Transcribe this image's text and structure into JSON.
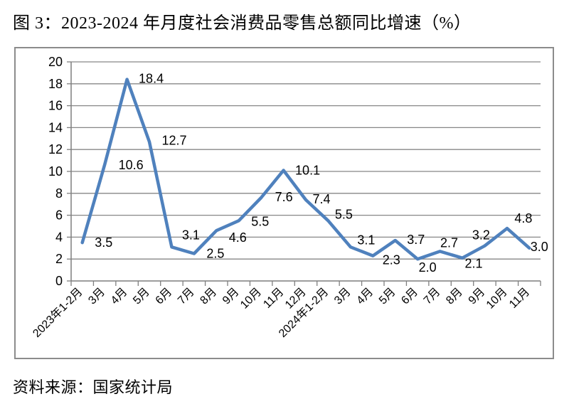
{
  "page": {
    "title": "图 3：2023-2024 年月度社会消费品零售总额同比增速（%）",
    "source": "资料来源：国家统计局"
  },
  "chart_data": {
    "type": "line",
    "title": "2023-2024 年月度社会消费品零售总额同比增速（%）",
    "xlabel": "",
    "ylabel": "",
    "categories": [
      "2023年1-2月",
      "3月",
      "4月",
      "5月",
      "6月",
      "7月",
      "8月",
      "9月",
      "10月",
      "11月",
      "12月",
      "2024年1-2月",
      "3月",
      "4月",
      "5月",
      "6月",
      "7月",
      "8月",
      "9月",
      "10月",
      "11月"
    ],
    "values": [
      3.5,
      10.6,
      18.4,
      12.7,
      3.1,
      2.5,
      4.6,
      5.5,
      7.6,
      10.1,
      7.4,
      5.5,
      3.1,
      2.3,
      3.7,
      2.0,
      2.7,
      2.1,
      3.2,
      4.8,
      3.0
    ],
    "ylim": [
      0,
      20
    ],
    "y_tick_step": 2,
    "grid": true,
    "legend": "none",
    "data_labels_shown": true,
    "colors": {
      "line": "#4F81BD",
      "gridline": "#878787",
      "axis": "#7f7f7f",
      "text": "#000000",
      "frame_border": "#8c8c8c",
      "background": "#ffffff"
    }
  }
}
